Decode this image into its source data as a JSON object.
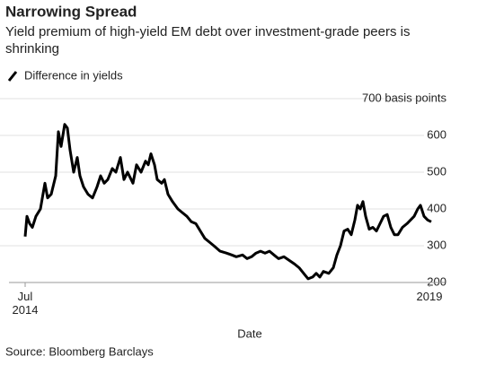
{
  "chart_data": {
    "type": "line",
    "title": "Narrowing Spread",
    "subtitle": "Yield premium of high-yield EM debt over investment-grade peers is shrinking",
    "x_label": "Date",
    "source": "Source: Bloomberg Barclays",
    "x": [
      2014.5,
      2014.52,
      2014.55,
      2014.58,
      2014.62,
      2014.67,
      2014.72,
      2014.75,
      2014.79,
      2014.84,
      2014.87,
      2014.9,
      2014.94,
      2014.97,
      2015.0,
      2015.04,
      2015.08,
      2015.11,
      2015.15,
      2015.2,
      2015.25,
      2015.3,
      2015.34,
      2015.38,
      2015.42,
      2015.47,
      2015.51,
      2015.56,
      2015.6,
      2015.64,
      2015.7,
      2015.74,
      2015.79,
      2015.84,
      2015.87,
      2015.9,
      2015.94,
      2015.97,
      2016.02,
      2016.05,
      2016.09,
      2016.14,
      2016.2,
      2016.25,
      2016.3,
      2016.35,
      2016.4,
      2016.45,
      2016.5,
      2016.55,
      2016.6,
      2016.67,
      2016.74,
      2016.8,
      2016.85,
      2016.92,
      2016.97,
      2017.02,
      2017.07,
      2017.12,
      2017.17,
      2017.22,
      2017.27,
      2017.32,
      2017.38,
      2017.44,
      2017.5,
      2017.55,
      2017.6,
      2017.65,
      2017.7,
      2017.74,
      2017.78,
      2017.82,
      2017.88,
      2017.93,
      2017.97,
      2018.01,
      2018.05,
      2018.09,
      2018.13,
      2018.17,
      2018.2,
      2018.23,
      2018.26,
      2018.29,
      2018.33,
      2018.37,
      2018.41,
      2018.45,
      2018.49,
      2018.53,
      2018.57,
      2018.61,
      2018.65,
      2018.7,
      2018.75,
      2018.79,
      2018.83,
      2018.87,
      2018.9,
      2018.94,
      2018.98,
      2019.02
    ],
    "series": [
      {
        "name": "Difference in yields",
        "color": "#000000",
        "values": [
          325,
          380,
          360,
          350,
          380,
          400,
          470,
          430,
          440,
          490,
          610,
          570,
          630,
          620,
          560,
          500,
          540,
          490,
          460,
          440,
          430,
          460,
          490,
          470,
          480,
          510,
          500,
          540,
          480,
          500,
          470,
          520,
          500,
          530,
          520,
          550,
          520,
          480,
          470,
          480,
          440,
          420,
          400,
          390,
          380,
          365,
          360,
          340,
          320,
          310,
          300,
          285,
          280,
          275,
          270,
          275,
          265,
          270,
          280,
          285,
          280,
          285,
          275,
          265,
          270,
          260,
          250,
          240,
          225,
          210,
          215,
          225,
          215,
          230,
          225,
          240,
          275,
          300,
          340,
          345,
          330,
          370,
          410,
          400,
          420,
          380,
          345,
          350,
          340,
          360,
          380,
          385,
          350,
          330,
          330,
          350,
          360,
          370,
          380,
          400,
          410,
          380,
          370,
          365
        ]
      }
    ],
    "xlim": [
      2014.38,
      2019.15
    ],
    "ylim": [
      200,
      700
    ],
    "yticks": [
      200,
      300,
      400,
      500,
      600,
      {
        "value": 700,
        "label": "700 basis points"
      }
    ],
    "xticks": [
      {
        "value": 2014.5,
        "label": "Jul\n2014"
      },
      {
        "value": 2019,
        "label": "2019"
      }
    ],
    "grid": true
  }
}
